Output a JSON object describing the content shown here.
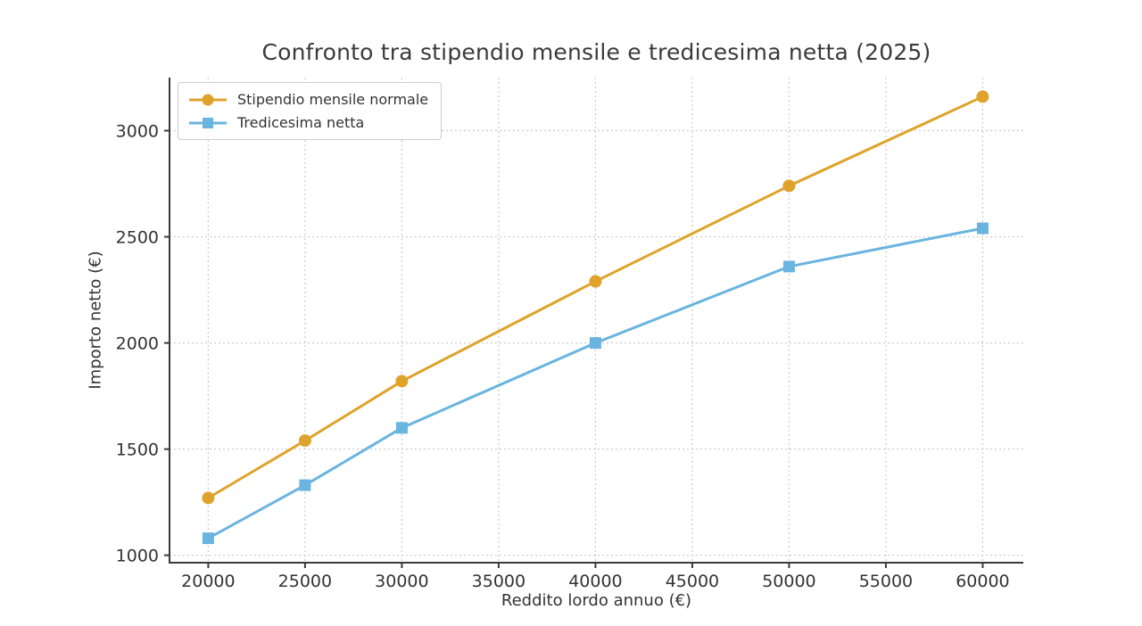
{
  "figure": {
    "title": "Confronto tra stipendio mensile e tredicesima netta (2025)",
    "xlabel": "Reddito lordo annuo (€)",
    "ylabel": "Importo netto (€)"
  },
  "chart_data": {
    "type": "line",
    "title": "Confronto tra stipendio mensile e tredicesima netta (2025)",
    "xlabel": "Reddito lordo annuo (€)",
    "ylabel": "Importo netto (€)",
    "x": [
      20000,
      25000,
      30000,
      40000,
      50000,
      60000
    ],
    "series": [
      {
        "name": "Stipendio mensile normale",
        "values": [
          1270,
          1540,
          1820,
          2290,
          2740,
          3160
        ],
        "color": "#DFA32B",
        "marker": "circle"
      },
      {
        "name": "Tredicesima netta",
        "values": [
          1080,
          1330,
          1600,
          2000,
          2360,
          2540
        ],
        "color": "#6AB4E0",
        "marker": "square"
      }
    ],
    "xticks": [
      20000,
      25000,
      30000,
      35000,
      40000,
      45000,
      50000,
      55000,
      60000
    ],
    "yticks": [
      1000,
      1500,
      2000,
      2500,
      3000
    ],
    "xlim": [
      18000,
      62100
    ],
    "ylim": [
      965,
      3250
    ],
    "grid": true,
    "grid_style": "dashed",
    "legend_position": "upper-left"
  },
  "colors": {
    "grid": "#cbcbcb",
    "axis": "#3a3a3a",
    "tick_text": "#333333",
    "background": "#ffffff"
  }
}
